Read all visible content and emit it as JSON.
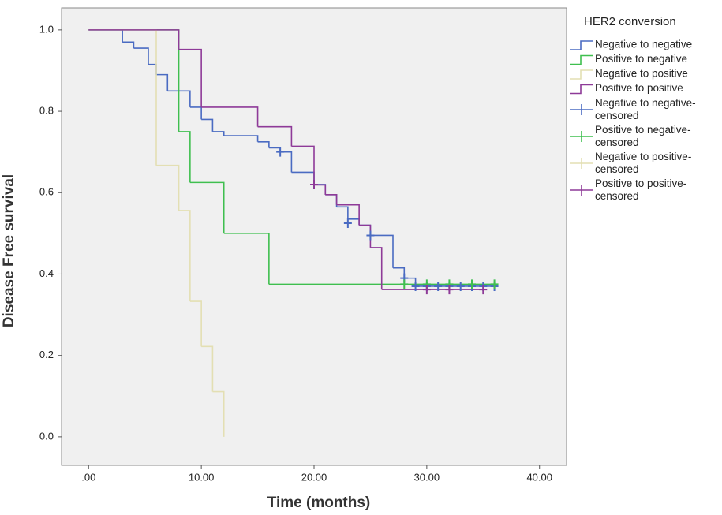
{
  "chart_data": {
    "type": "kaplan-meier",
    "x_label": "Time (months)",
    "y_label": "Disease Free survival",
    "legend_title": "HER2 conversion",
    "xlim": [
      -2.4,
      42.4
    ],
    "ylim": [
      -0.07,
      1.054
    ],
    "xticks": [
      {
        "value": 0,
        "label": ".00"
      },
      {
        "value": 10,
        "label": "10.00"
      },
      {
        "value": 20,
        "label": "20.00"
      },
      {
        "value": 30,
        "label": "30.00"
      },
      {
        "value": 40,
        "label": "40.00"
      }
    ],
    "yticks": [
      {
        "value": 0,
        "label": "0.0"
      },
      {
        "value": 0.2,
        "label": "0.2"
      },
      {
        "value": 0.4,
        "label": "0.4"
      },
      {
        "value": 0.6,
        "label": "0.6"
      },
      {
        "value": 0.8,
        "label": "0.8"
      },
      {
        "value": 1,
        "label": "1.0"
      }
    ],
    "series": [
      {
        "name": "Negative to negative",
        "kind": "step",
        "color": "#4a6bc2",
        "x": [
          0,
          3,
          4,
          5.3,
          6,
          7,
          9,
          10,
          11,
          12,
          15,
          16,
          17,
          18,
          20,
          21,
          22,
          23,
          24,
          25,
          27,
          28,
          29,
          36
        ],
        "values": [
          1,
          0.97,
          0.955,
          0.915,
          0.89,
          0.85,
          0.81,
          0.78,
          0.75,
          0.74,
          0.725,
          0.71,
          0.7,
          0.65,
          0.62,
          0.595,
          0.565,
          0.535,
          0.52,
          0.495,
          0.415,
          0.39,
          0.37,
          0.37
        ]
      },
      {
        "name": "Positive to negative",
        "kind": "step",
        "color": "#3fbf4f",
        "x": [
          0,
          8,
          9,
          12,
          16,
          36
        ],
        "values": [
          1,
          0.75,
          0.625,
          0.5,
          0.375,
          0.375
        ]
      },
      {
        "name": "Negative to positive",
        "kind": "step",
        "color": "#e3dfb3",
        "x": [
          0,
          6,
          8,
          9,
          10,
          11,
          12
        ],
        "values": [
          1,
          0.667,
          0.556,
          0.333,
          0.222,
          0.111,
          0
        ]
      },
      {
        "name": "Positive to positive",
        "kind": "step",
        "color": "#8e3a98",
        "x": [
          0,
          8,
          10,
          15,
          18,
          20,
          21,
          22,
          24,
          25,
          26,
          35
        ],
        "values": [
          1,
          0.952,
          0.81,
          0.762,
          0.714,
          0.619,
          0.595,
          0.57,
          0.52,
          0.465,
          0.362,
          0.362
        ]
      },
      {
        "name": "Negative to negative-censored",
        "kind": "censor",
        "color": "#4a6bc2",
        "x": [
          17,
          23,
          25,
          28,
          29,
          30,
          31,
          32,
          33,
          34,
          35,
          36
        ],
        "values": [
          0.7,
          0.525,
          0.495,
          0.39,
          0.37,
          0.37,
          0.37,
          0.37,
          0.37,
          0.37,
          0.37,
          0.37
        ]
      },
      {
        "name": "Positive to negative-censored",
        "kind": "censor",
        "color": "#3fbf4f",
        "x": [
          28,
          30,
          32,
          34,
          36
        ],
        "values": [
          0.375,
          0.375,
          0.375,
          0.375,
          0.375
        ]
      },
      {
        "name": "Negative to positive-censored",
        "kind": "censor",
        "color": "#e3dfb3",
        "x": [],
        "values": []
      },
      {
        "name": "Positive to positive-censored",
        "kind": "censor",
        "color": "#8e3a98",
        "x": [
          20,
          30,
          32,
          35
        ],
        "values": [
          0.62,
          0.362,
          0.362,
          0.362
        ]
      }
    ]
  }
}
